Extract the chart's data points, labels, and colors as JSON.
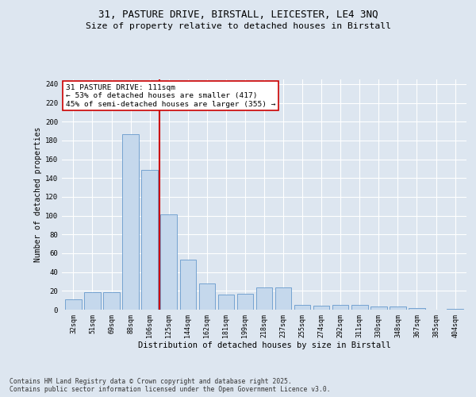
{
  "title_line1": "31, PASTURE DRIVE, BIRSTALL, LEICESTER, LE4 3NQ",
  "title_line2": "Size of property relative to detached houses in Birstall",
  "xlabel": "Distribution of detached houses by size in Birstall",
  "ylabel": "Number of detached properties",
  "categories": [
    "32sqm",
    "51sqm",
    "69sqm",
    "88sqm",
    "106sqm",
    "125sqm",
    "144sqm",
    "162sqm",
    "181sqm",
    "199sqm",
    "218sqm",
    "237sqm",
    "255sqm",
    "274sqm",
    "292sqm",
    "311sqm",
    "330sqm",
    "348sqm",
    "367sqm",
    "385sqm",
    "404sqm"
  ],
  "values": [
    11,
    19,
    19,
    187,
    149,
    101,
    53,
    28,
    16,
    17,
    24,
    24,
    5,
    4,
    5,
    5,
    3,
    3,
    2,
    0,
    1
  ],
  "bar_color": "#c5d8ec",
  "bar_edge_color": "#6699cc",
  "background_color": "#dde6f0",
  "grid_color": "#ffffff",
  "vline_x_idx": 4,
  "vline_color": "#cc0000",
  "annotation_text": "31 PASTURE DRIVE: 111sqm\n← 53% of detached houses are smaller (417)\n45% of semi-detached houses are larger (355) →",
  "annotation_box_color": "#ffffff",
  "annotation_box_edge": "#cc0000",
  "footnote": "Contains HM Land Registry data © Crown copyright and database right 2025.\nContains public sector information licensed under the Open Government Licence v3.0.",
  "ylim": [
    0,
    245
  ],
  "yticks": [
    0,
    20,
    40,
    60,
    80,
    100,
    120,
    140,
    160,
    180,
    200,
    220,
    240
  ]
}
